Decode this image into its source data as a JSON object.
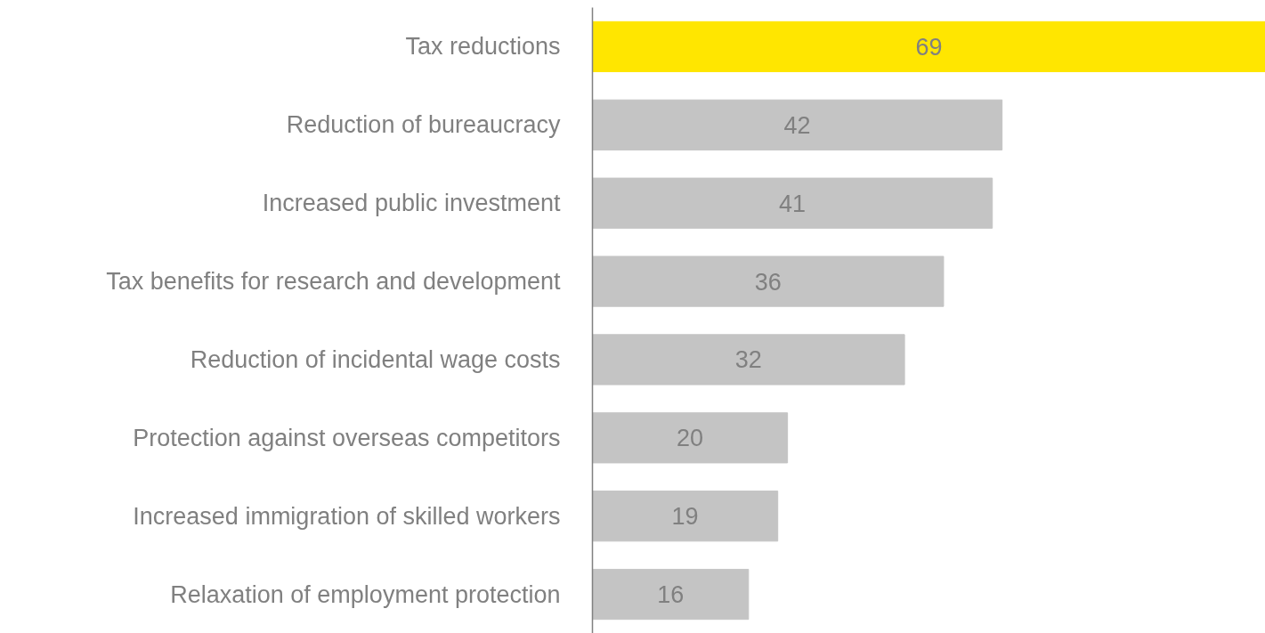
{
  "chart_data": {
    "type": "bar",
    "orientation": "horizontal",
    "categories": [
      "Tax reductions",
      "Reduction of bureaucracy",
      "Increased public investment",
      "Tax benefits for research and development",
      "Reduction of incidental wage costs",
      "Protection against overseas competitors",
      "Increased immigration of skilled workers",
      "Relaxation of employment protection"
    ],
    "values": [
      69,
      42,
      41,
      36,
      32,
      20,
      19,
      16
    ],
    "colors": [
      "#ffe600",
      "#c4c4c4",
      "#c4c4c4",
      "#c4c4c4",
      "#c4c4c4",
      "#c4c4c4",
      "#c4c4c4",
      "#c4c4c4"
    ],
    "data_labels": true,
    "tick_labels": "y"
  }
}
